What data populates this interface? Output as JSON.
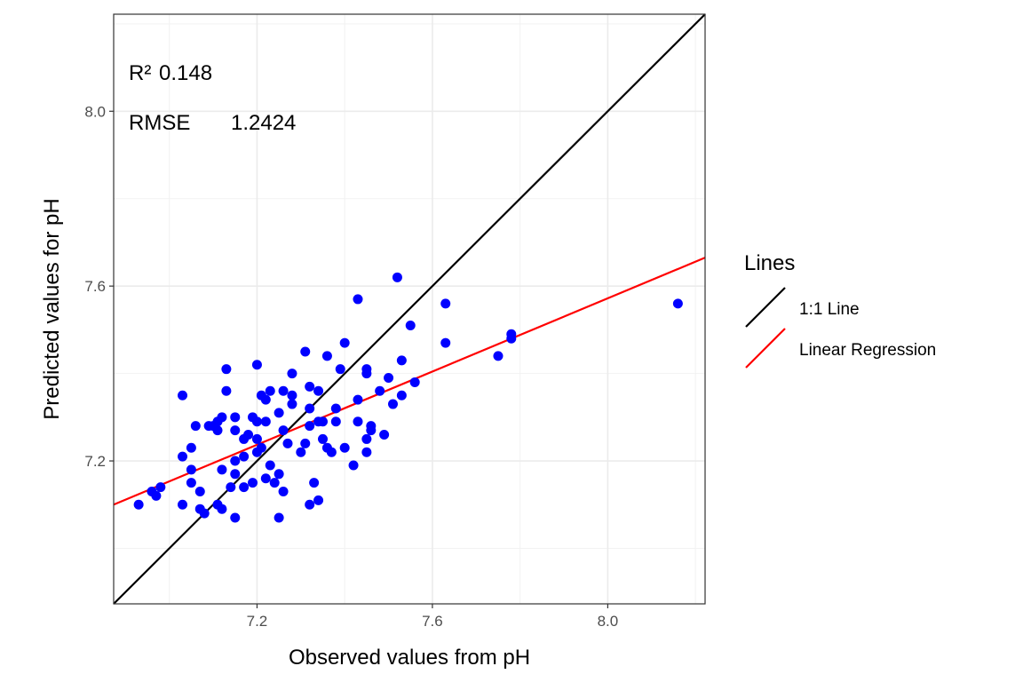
{
  "chart_data": {
    "type": "scatter",
    "xlabel": "Observed values from pH",
    "ylabel": "Predicted values for pH",
    "xlim": [
      6.873,
      8.222
    ],
    "ylim": [
      6.873,
      8.222
    ],
    "x_ticks": [
      7.2,
      7.6,
      8.0
    ],
    "y_ticks": [
      7.2,
      7.6,
      8.0
    ],
    "x_tick_labels": [
      "7.2",
      "7.6",
      "8.0"
    ],
    "y_tick_labels": [
      "7.2",
      "7.6",
      "8.0"
    ],
    "grid": true,
    "point_color": "#0000ff",
    "annotations": {
      "r2_label": "R²",
      "r2_value": "0.148",
      "rmse_label": "RMSE",
      "rmse_value": "1.2424"
    },
    "legend": {
      "title": "Lines",
      "position": "right",
      "entries": [
        {
          "label": "1:1 Line",
          "color": "#000000"
        },
        {
          "label": "Linear Regression",
          "color": "#ff0000"
        }
      ]
    },
    "lines": [
      {
        "name": "1:1 Line",
        "color": "#000000",
        "x": [
          6.873,
          8.222
        ],
        "y": [
          6.873,
          8.222
        ]
      },
      {
        "name": "Linear Regression",
        "color": "#ff0000",
        "x": [
          6.873,
          8.222
        ],
        "y": [
          7.1,
          7.665
        ]
      }
    ],
    "points": [
      [
        6.93,
        7.1
      ],
      [
        6.96,
        7.13
      ],
      [
        6.97,
        7.12
      ],
      [
        6.98,
        7.14
      ],
      [
        7.03,
        7.1
      ],
      [
        7.03,
        7.21
      ],
      [
        7.03,
        7.35
      ],
      [
        7.05,
        7.15
      ],
      [
        7.05,
        7.18
      ],
      [
        7.05,
        7.23
      ],
      [
        7.06,
        7.28
      ],
      [
        7.07,
        7.09
      ],
      [
        7.07,
        7.13
      ],
      [
        7.08,
        7.08
      ],
      [
        7.09,
        7.28
      ],
      [
        7.1,
        7.28
      ],
      [
        7.11,
        7.1
      ],
      [
        7.11,
        7.27
      ],
      [
        7.11,
        7.29
      ],
      [
        7.12,
        7.09
      ],
      [
        7.12,
        7.18
      ],
      [
        7.12,
        7.3
      ],
      [
        7.13,
        7.36
      ],
      [
        7.13,
        7.41
      ],
      [
        7.14,
        7.14
      ],
      [
        7.15,
        7.07
      ],
      [
        7.15,
        7.17
      ],
      [
        7.15,
        7.2
      ],
      [
        7.15,
        7.27
      ],
      [
        7.15,
        7.3
      ],
      [
        7.17,
        7.14
      ],
      [
        7.17,
        7.21
      ],
      [
        7.17,
        7.25
      ],
      [
        7.18,
        7.26
      ],
      [
        7.19,
        7.15
      ],
      [
        7.19,
        7.3
      ],
      [
        7.2,
        7.22
      ],
      [
        7.2,
        7.25
      ],
      [
        7.2,
        7.29
      ],
      [
        7.2,
        7.42
      ],
      [
        7.21,
        7.23
      ],
      [
        7.21,
        7.35
      ],
      [
        7.22,
        7.16
      ],
      [
        7.22,
        7.29
      ],
      [
        7.22,
        7.34
      ],
      [
        7.23,
        7.19
      ],
      [
        7.23,
        7.36
      ],
      [
        7.24,
        7.15
      ],
      [
        7.25,
        7.07
      ],
      [
        7.25,
        7.17
      ],
      [
        7.25,
        7.31
      ],
      [
        7.26,
        7.13
      ],
      [
        7.26,
        7.27
      ],
      [
        7.26,
        7.36
      ],
      [
        7.27,
        7.24
      ],
      [
        7.28,
        7.33
      ],
      [
        7.28,
        7.35
      ],
      [
        7.28,
        7.4
      ],
      [
        7.3,
        7.22
      ],
      [
        7.31,
        7.24
      ],
      [
        7.31,
        7.45
      ],
      [
        7.32,
        7.1
      ],
      [
        7.32,
        7.28
      ],
      [
        7.32,
        7.32
      ],
      [
        7.32,
        7.37
      ],
      [
        7.33,
        7.15
      ],
      [
        7.34,
        7.11
      ],
      [
        7.34,
        7.29
      ],
      [
        7.34,
        7.36
      ],
      [
        7.35,
        7.25
      ],
      [
        7.35,
        7.29
      ],
      [
        7.36,
        7.23
      ],
      [
        7.36,
        7.44
      ],
      [
        7.37,
        7.22
      ],
      [
        7.38,
        7.29
      ],
      [
        7.38,
        7.32
      ],
      [
        7.39,
        7.41
      ],
      [
        7.4,
        7.23
      ],
      [
        7.4,
        7.47
      ],
      [
        7.42,
        7.19
      ],
      [
        7.43,
        7.29
      ],
      [
        7.43,
        7.34
      ],
      [
        7.43,
        7.57
      ],
      [
        7.45,
        7.22
      ],
      [
        7.45,
        7.25
      ],
      [
        7.45,
        7.4
      ],
      [
        7.45,
        7.41
      ],
      [
        7.46,
        7.27
      ],
      [
        7.46,
        7.28
      ],
      [
        7.48,
        7.36
      ],
      [
        7.49,
        7.26
      ],
      [
        7.5,
        7.39
      ],
      [
        7.51,
        7.33
      ],
      [
        7.52,
        7.62
      ],
      [
        7.53,
        7.35
      ],
      [
        7.53,
        7.43
      ],
      [
        7.55,
        7.51
      ],
      [
        7.56,
        7.38
      ],
      [
        7.63,
        7.47
      ],
      [
        7.63,
        7.56
      ],
      [
        7.75,
        7.44
      ],
      [
        7.78,
        7.48
      ],
      [
        7.78,
        7.49
      ],
      [
        8.16,
        7.56
      ]
    ]
  }
}
